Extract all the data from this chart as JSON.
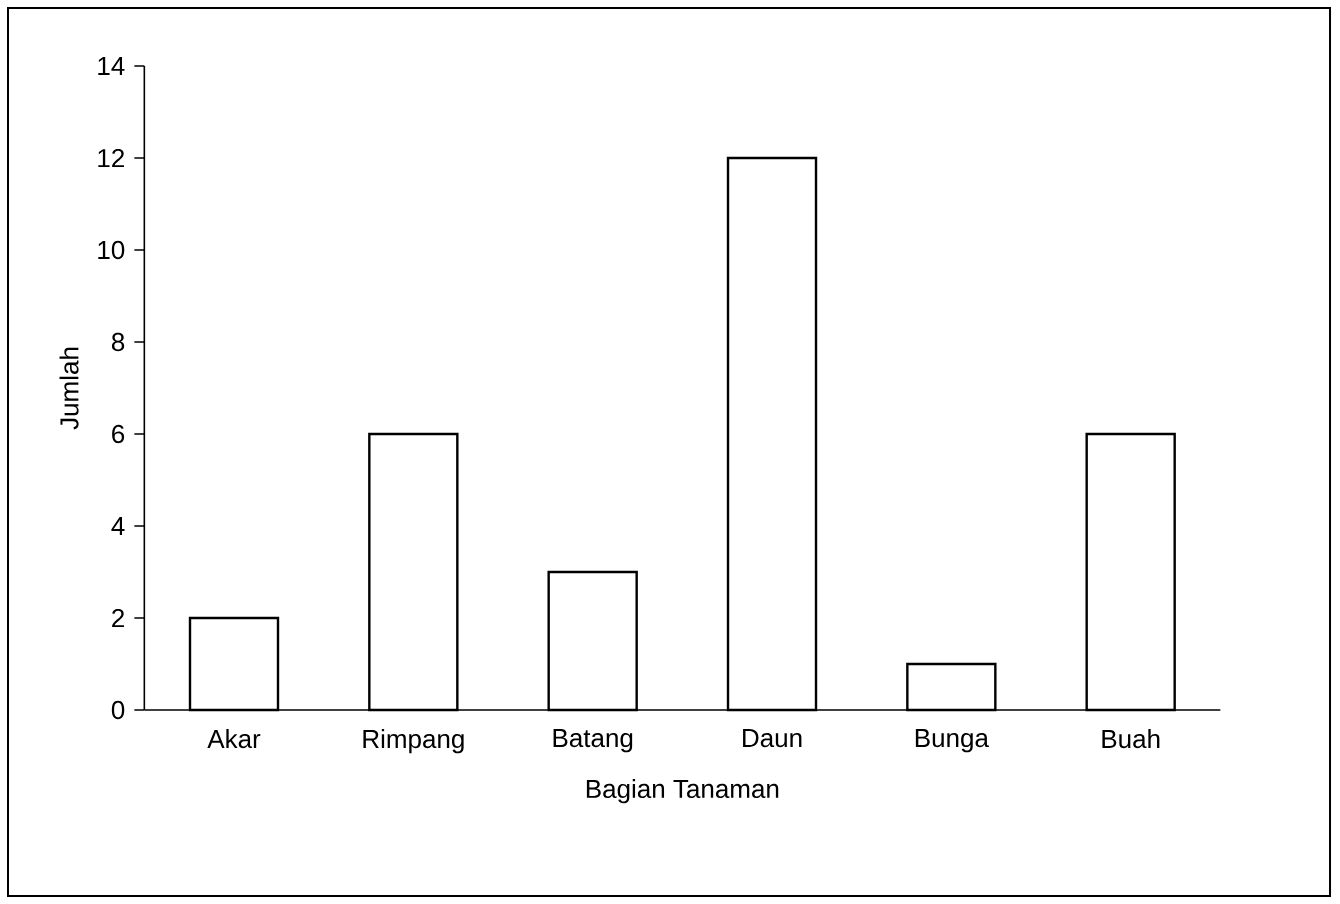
{
  "chart_data": {
    "type": "bar",
    "xlabel": "Bagian Tanaman",
    "ylabel": "Jumlah",
    "categories": [
      "Akar",
      "Rimpang",
      "Batang",
      "Daun",
      "Bunga",
      "Buah"
    ],
    "values": [
      2,
      6,
      3,
      12,
      1,
      6
    ],
    "color": "#ffffff",
    "ylim": [
      0,
      14
    ],
    "yticks": [
      0,
      2,
      4,
      6,
      8,
      10,
      12,
      14
    ]
  }
}
